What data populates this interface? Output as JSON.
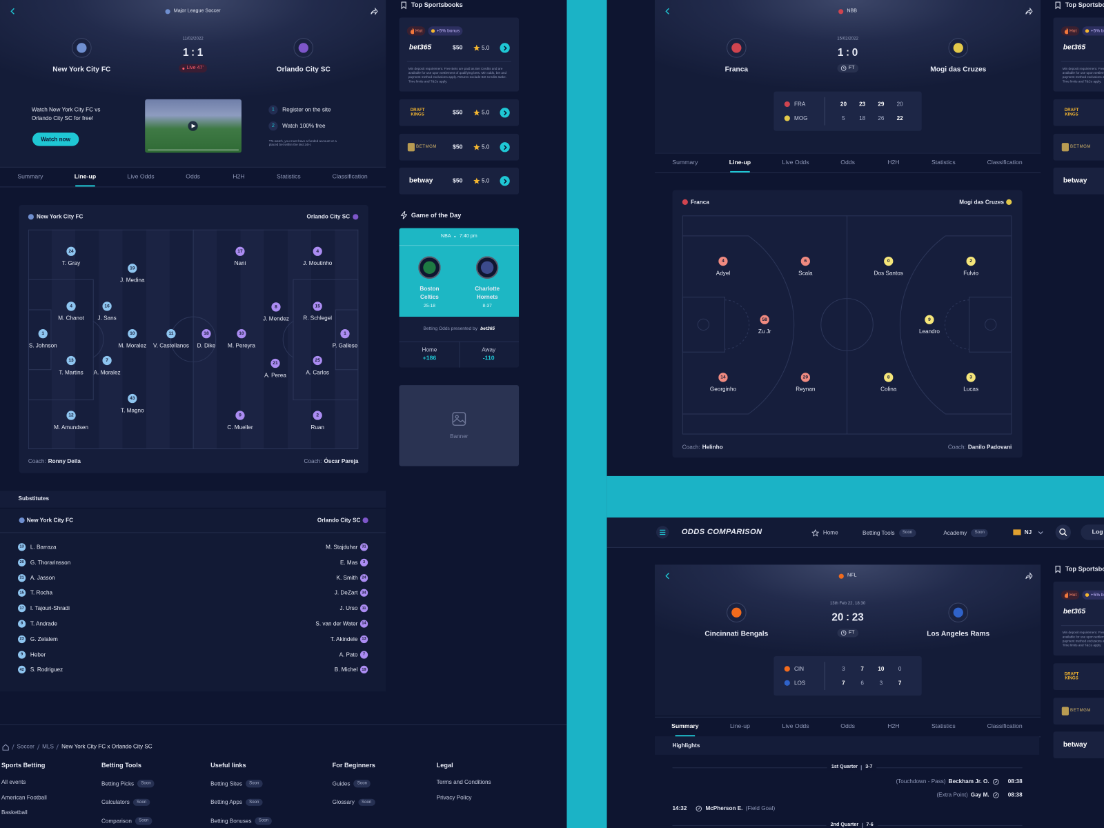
{
  "tabs": [
    "Summary",
    "Line-up",
    "Live Odds",
    "Odds",
    "H2H",
    "Statistics",
    "Classification"
  ],
  "coach_label": "Coach:",
  "soon": "Soon",
  "soccer": {
    "league": "Major League Soccer",
    "date": "11/02/2022",
    "home": "New York City FC",
    "away": "Orlando City SC",
    "score_home": 1,
    "score_away": 1,
    "status": "Live 47'",
    "active_tab": 1,
    "promo": {
      "text": "Watch New York City FC vs Orlando City SC  for free!",
      "button": "Watch now",
      "steps": [
        {
          "number": 1,
          "text": "Register on the site"
        },
        {
          "number": 2,
          "text": "Watch 100% free"
        }
      ],
      "note": "*To watch, you must have a funded account or a placed bet within the last 24H."
    },
    "lineup": {
      "home_players": [
        {
          "number": 24,
          "name": "T. Gray"
        },
        {
          "number": 19,
          "name": "J. Medina"
        },
        {
          "number": 4,
          "name": "M. Chanot"
        },
        {
          "number": 16,
          "name": "J. Sans"
        },
        {
          "number": 1,
          "name": "S. Johnson"
        },
        {
          "number": 10,
          "name": "M. Moralez"
        },
        {
          "number": 11,
          "name": "V. Castellanos"
        },
        {
          "number": 13,
          "name": "T. Martins"
        },
        {
          "number": 7,
          "name": "A. Moralez"
        },
        {
          "number": 43,
          "name": "T. Magno"
        },
        {
          "number": 12,
          "name": "M. Amundsen"
        }
      ],
      "away_players": [
        {
          "number": 17,
          "name": "Nani"
        },
        {
          "number": 4,
          "name": "J. Moutinho"
        },
        {
          "number": 8,
          "name": "J. Mendez"
        },
        {
          "number": 15,
          "name": "R. Schlegel"
        },
        {
          "number": 18,
          "name": "D. Dike"
        },
        {
          "number": 10,
          "name": "M. Pereyra"
        },
        {
          "number": 1,
          "name": "P. Gallese"
        },
        {
          "number": 21,
          "name": "A. Perea"
        },
        {
          "number": 25,
          "name": "A. Carlos"
        },
        {
          "number": 9,
          "name": "C. Mueller"
        },
        {
          "number": 2,
          "name": "Ruan"
        }
      ],
      "home_coach": "Ronny Deila",
      "away_coach": "Óscar Pareja"
    },
    "substitutes": {
      "title": "Substitutes",
      "home": [
        {
          "number": 13,
          "name": "L. Barraza"
        },
        {
          "number": 20,
          "name": "G. Thorarinsson"
        },
        {
          "number": 21,
          "name": "A. Jasson"
        },
        {
          "number": 15,
          "name": "T. Rocha"
        },
        {
          "number": 17,
          "name": "I. Tajouri-Shradi"
        },
        {
          "number": 8,
          "name": "T. Andrade"
        },
        {
          "number": 23,
          "name": "G. Zelalem"
        },
        {
          "number": 9,
          "name": "Heber"
        },
        {
          "number": 42,
          "name": "S. Rodriguez"
        }
      ],
      "away": [
        {
          "number": 31,
          "name": "M. Stajduhar"
        },
        {
          "number": 3,
          "name": "E. Mas"
        },
        {
          "number": 24,
          "name": "K. Smith"
        },
        {
          "number": 34,
          "name": "J. DeZart"
        },
        {
          "number": 11,
          "name": "J. Urso"
        },
        {
          "number": 14,
          "name": "S. van der Water"
        },
        {
          "number": 13,
          "name": "T. Akindele"
        },
        {
          "number": 7,
          "name": "A. Pato"
        },
        {
          "number": 19,
          "name": "B. Michel"
        }
      ]
    }
  },
  "basketball": {
    "league": "NBB",
    "date": "15/02/2022",
    "home": "Franca",
    "away": "Mogi das Cruzes",
    "score_home": 1,
    "score_away": 0,
    "status": "FT",
    "active_tab": 1,
    "quarters": {
      "home_abbr": "FRA",
      "away_abbr": "MOG",
      "home": [
        20,
        23,
        29,
        20
      ],
      "away": [
        5,
        18,
        26,
        22
      ]
    },
    "lineup": {
      "home_players": [
        {
          "number": 4,
          "name": "Adyel"
        },
        {
          "number": 6,
          "name": "Scala"
        },
        {
          "number": 58,
          "name": "Zu Jr"
        },
        {
          "number": 14,
          "name": "Georginho"
        },
        {
          "number": 29,
          "name": "Reynan"
        }
      ],
      "away_players": [
        {
          "number": 0,
          "name": "Dos Santos"
        },
        {
          "number": 2,
          "name": "Fulvio"
        },
        {
          "number": 9,
          "name": "Leandro"
        },
        {
          "number": 8,
          "name": "Colina"
        },
        {
          "number": 3,
          "name": "Lucas"
        }
      ],
      "home_coach": "Helinho",
      "away_coach": "Danilo Padovani"
    }
  },
  "football": {
    "league": "NFL",
    "date": "13th Feb 22, 18:30",
    "home": "Cincinnati Bengals",
    "away": "Los Angeles Rams",
    "score_home": 20,
    "score_away": 23,
    "status": "FT",
    "active_tab": 0,
    "quarters": {
      "home_abbr": "CIN",
      "away_abbr": "LOS",
      "home": [
        3,
        7,
        10,
        0
      ],
      "away": [
        7,
        6,
        3,
        7
      ]
    },
    "highlights": {
      "title": "Highlights",
      "periods": [
        {
          "name": "1st Quarter",
          "score": "3-7",
          "events": [
            {
              "side": "away",
              "type": "(Touchdown - Pass)",
              "player": "Beckham Jr. O.",
              "time": "08:38"
            },
            {
              "side": "away",
              "type": "(Extra Point)",
              "player": "Gay M.",
              "time": "08:38"
            },
            {
              "side": "home",
              "time": "14:32",
              "player": "McPherson E.",
              "type": "(Field Goal)"
            }
          ]
        },
        {
          "name": "2nd Quarter",
          "score": "7-6",
          "events": []
        }
      ]
    }
  },
  "sidebar": {
    "title": "Top Sportsbooks",
    "books": [
      {
        "name": "bet365",
        "tags": [
          "Hot",
          "+5% bonus"
        ],
        "bonus": "$50",
        "rating": "5.0",
        "terms": "Min deposit requirement. Free Bets are paid as Bet Credits and are available for use upon settlement of qualifying bets. Min odds, bet and payment method exclusions apply. Returns exclude Bet Credits stake. Time limits and T&Cs apply."
      },
      {
        "name": "DRAFT KINGS",
        "bonus": "$50",
        "rating": "5.0"
      },
      {
        "name": "BETMGM",
        "bonus": "$50",
        "rating": "5.0"
      },
      {
        "name": "betway",
        "bonus": "$50",
        "rating": "5.0"
      }
    ],
    "game_of_day": {
      "title": "Game of the Day",
      "league": "NBA",
      "time": "7:40 pm",
      "home": {
        "name": "Boston Celtics",
        "record": "25-18"
      },
      "away": {
        "name": "Charlotte Hornets",
        "record": "8-37"
      },
      "odds_label": "Betting Odds presented by",
      "odds_brand": "bet365",
      "home_label": "Home",
      "home_odds": "+186",
      "away_label": "Away",
      "away_odds": "-110"
    },
    "banner": "Banner"
  },
  "nav": {
    "logo": "ODDS COMPARISON",
    "links": [
      {
        "text": "Home"
      },
      {
        "text": "Betting Tools",
        "badge": "Soon"
      },
      {
        "text": "Academy",
        "badge": "Soon"
      }
    ],
    "region": "NJ",
    "login": "Log in"
  },
  "footer": {
    "breadcrumb": [
      "Soccer",
      "MLS",
      "New York City FC x Orlando City SC"
    ],
    "columns": [
      {
        "title": "Sports Betting",
        "links": [
          {
            "text": "All events"
          },
          {
            "text": "American Football"
          },
          {
            "text": "Basketball"
          }
        ]
      },
      {
        "title": "Betting Tools",
        "links": [
          {
            "text": "Betting Picks",
            "badge": "Soon"
          },
          {
            "text": "Calculators",
            "badge": "Soon"
          },
          {
            "text": "Comparison",
            "badge": "Soon"
          }
        ]
      },
      {
        "title": "Useful links",
        "links": [
          {
            "text": "Betting Sites",
            "badge": "Soon"
          },
          {
            "text": "Betting Apps",
            "badge": "Soon"
          },
          {
            "text": "Betting Bonuses",
            "badge": "Soon"
          }
        ]
      },
      {
        "title": "For Beginners",
        "links": [
          {
            "text": "Guides",
            "badge": "Soon"
          },
          {
            "text": "Glossary",
            "badge": "Soon"
          }
        ]
      },
      {
        "title": "Legal",
        "links": [
          {
            "text": "Terms and Conditions"
          },
          {
            "text": "Privacy Policy"
          }
        ]
      }
    ]
  }
}
